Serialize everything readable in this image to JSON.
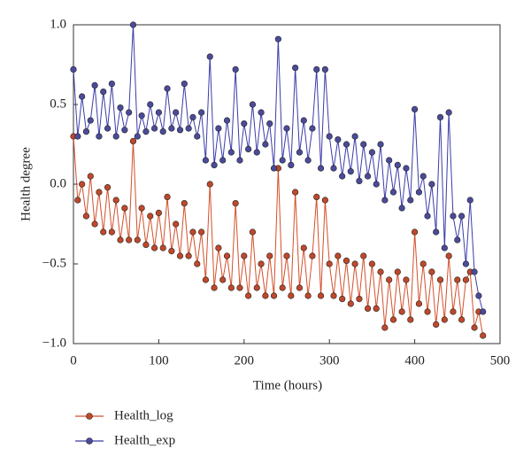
{
  "chart_data": {
    "type": "line",
    "x_label": "Time (hours)",
    "y_label": "Health degree",
    "x": [
      0,
      5,
      10,
      15,
      20,
      25,
      30,
      35,
      40,
      45,
      50,
      55,
      60,
      65,
      70,
      75,
      80,
      85,
      90,
      95,
      100,
      105,
      110,
      115,
      120,
      125,
      130,
      135,
      140,
      145,
      150,
      155,
      160,
      165,
      170,
      175,
      180,
      185,
      190,
      195,
      200,
      205,
      210,
      215,
      220,
      225,
      230,
      235,
      240,
      245,
      250,
      255,
      260,
      265,
      270,
      275,
      280,
      285,
      290,
      295,
      300,
      305,
      310,
      315,
      320,
      325,
      330,
      335,
      340,
      345,
      350,
      355,
      360,
      365,
      370,
      375,
      380,
      385,
      390,
      395,
      400,
      405,
      410,
      415,
      420,
      425,
      430,
      435,
      440,
      445,
      450,
      455,
      460,
      465,
      470,
      475,
      480
    ],
    "series": [
      {
        "name": "Health_log",
        "color": "#d2502a",
        "marker_color": "#c0482a",
        "values": [
          0.3,
          -0.1,
          0.0,
          -0.2,
          0.05,
          -0.25,
          -0.05,
          -0.3,
          -0.02,
          -0.3,
          -0.1,
          -0.35,
          -0.15,
          -0.35,
          0.27,
          -0.35,
          -0.15,
          -0.38,
          -0.2,
          -0.4,
          -0.18,
          -0.4,
          -0.08,
          -0.42,
          -0.25,
          -0.45,
          -0.12,
          -0.45,
          -0.3,
          -0.5,
          -0.3,
          -0.6,
          0.0,
          -0.65,
          -0.4,
          -0.6,
          -0.45,
          -0.65,
          -0.12,
          -0.65,
          -0.45,
          -0.7,
          -0.3,
          -0.65,
          -0.5,
          -0.7,
          -0.45,
          -0.7,
          0.1,
          -0.65,
          -0.45,
          -0.7,
          -0.05,
          -0.65,
          -0.4,
          -0.7,
          -0.45,
          -0.08,
          -0.7,
          -0.1,
          -0.5,
          -0.7,
          -0.45,
          -0.72,
          -0.48,
          -0.75,
          -0.5,
          -0.72,
          -0.45,
          -0.78,
          -0.5,
          -0.78,
          -0.55,
          -0.9,
          -0.6,
          -0.85,
          -0.55,
          -0.8,
          -0.6,
          -0.85,
          -0.3,
          -0.75,
          -0.5,
          -0.8,
          -0.55,
          -0.88,
          -0.6,
          -0.85,
          -0.45,
          -0.8,
          -0.6,
          -0.85,
          -0.6,
          -0.55,
          -0.9,
          -0.8,
          -0.95
        ]
      },
      {
        "name": "Health_exp",
        "color": "#3b3ba8",
        "marker_color": "#4b4b9c",
        "values": [
          0.72,
          0.3,
          0.55,
          0.33,
          0.4,
          0.62,
          0.3,
          0.58,
          0.35,
          0.63,
          0.3,
          0.48,
          0.34,
          0.45,
          1.0,
          0.3,
          0.43,
          0.33,
          0.5,
          0.35,
          0.45,
          0.33,
          0.6,
          0.35,
          0.45,
          0.34,
          0.63,
          0.35,
          0.42,
          0.3,
          0.45,
          0.15,
          0.8,
          0.12,
          0.35,
          0.15,
          0.4,
          0.2,
          0.72,
          0.15,
          0.38,
          0.22,
          0.5,
          0.2,
          0.45,
          0.25,
          0.38,
          0.1,
          0.91,
          0.15,
          0.35,
          0.12,
          0.73,
          0.2,
          0.4,
          0.15,
          0.35,
          0.72,
          0.1,
          0.72,
          0.3,
          0.1,
          0.28,
          0.05,
          0.25,
          0.08,
          0.3,
          0.02,
          0.25,
          0.05,
          0.2,
          0.0,
          0.25,
          -0.1,
          0.15,
          -0.05,
          0.12,
          -0.15,
          0.1,
          -0.1,
          0.47,
          -0.05,
          0.05,
          -0.2,
          0.0,
          -0.3,
          0.42,
          -0.4,
          0.45,
          -0.2,
          -0.35,
          -0.2,
          -0.5,
          -0.1,
          -0.55,
          -0.7,
          -0.8
        ]
      }
    ],
    "xlim": [
      0,
      500
    ],
    "xticks": [
      0,
      100,
      200,
      300,
      400,
      500
    ],
    "ylim": [
      -1,
      1
    ],
    "yticks": [
      {
        "value": -1,
        "label": "−1.0"
      },
      {
        "value": -0.5,
        "label": "−0.5"
      },
      {
        "value": 0,
        "label": "0.0"
      },
      0.5,
      {
        "value": 1,
        "label": "1.0"
      }
    ],
    "legend": "bottom-left"
  }
}
